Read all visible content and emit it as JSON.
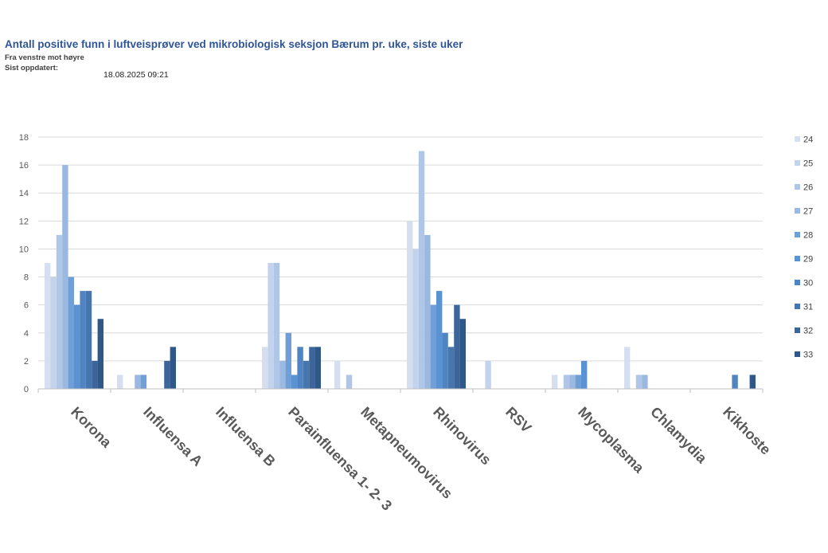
{
  "header": {
    "title": "Antall positive funn i luftveisprøver ved mikrobiologisk seksjon Bærum pr. uke, siste uker",
    "subtitle": "Fra venstre mot høyre",
    "updated_label": "Sist oppdatert:",
    "updated_value": "18.08.2025 09:21"
  },
  "chart_data": {
    "type": "bar",
    "title": "Antall positive funn i luftveisprøver ved mikrobiologisk seksjon Bærum pr. uke, siste uker",
    "xlabel": "",
    "ylabel": "",
    "ylim": [
      0,
      18
    ],
    "yticks": [
      0,
      2,
      4,
      6,
      8,
      10,
      12,
      14,
      16,
      18
    ],
    "grid": true,
    "legend_position": "right",
    "categories": [
      "Korona",
      "Influensa A",
      "Influensa B",
      "Parainfluensa 1- 2- 3",
      "Metapneumovirus",
      "Rhinovirus",
      "RSV",
      "Mycoplasma",
      "Chlamydia",
      "Kikhoste"
    ],
    "series": [
      {
        "name": "24",
        "color": "#d6dff0",
        "values": [
          9,
          1,
          0,
          3,
          2,
          12,
          0,
          1,
          3,
          0
        ]
      },
      {
        "name": "25",
        "color": "#c4d3ec",
        "values": [
          8,
          0,
          0,
          9,
          0,
          10,
          2,
          0,
          0,
          0
        ]
      },
      {
        "name": "26",
        "color": "#b0c6e6",
        "values": [
          11,
          0,
          0,
          9,
          1,
          17,
          0,
          1,
          1,
          0
        ]
      },
      {
        "name": "27",
        "color": "#9bb9e0",
        "values": [
          16,
          1,
          0,
          2,
          0,
          11,
          0,
          1,
          1,
          0
        ]
      },
      {
        "name": "28",
        "color": "#6f9fd6",
        "values": [
          8,
          1,
          0,
          4,
          0,
          6,
          0,
          1,
          0,
          0
        ]
      },
      {
        "name": "29",
        "color": "#5b92d1",
        "values": [
          6,
          0,
          0,
          1,
          0,
          7,
          0,
          2,
          0,
          0
        ]
      },
      {
        "name": "30",
        "color": "#4f83c1",
        "values": [
          7,
          0,
          0,
          3,
          0,
          4,
          0,
          0,
          0,
          1
        ]
      },
      {
        "name": "31",
        "color": "#4775ad",
        "values": [
          7,
          0,
          0,
          2,
          0,
          3,
          0,
          0,
          0,
          0
        ]
      },
      {
        "name": "32",
        "color": "#3c669b",
        "values": [
          2,
          2,
          0,
          3,
          0,
          6,
          0,
          0,
          0,
          0
        ]
      },
      {
        "name": "33",
        "color": "#2f5888",
        "values": [
          5,
          3,
          0,
          3,
          0,
          5,
          0,
          0,
          0,
          1
        ]
      }
    ]
  }
}
